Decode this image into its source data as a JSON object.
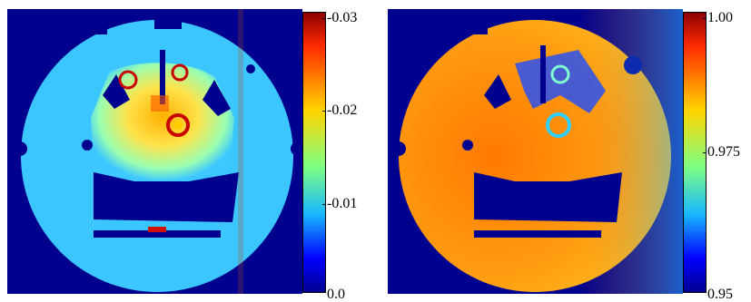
{
  "figure": {
    "left_map": {
      "colorbar": {
        "ticks": [
          "-0.03",
          "-0.02",
          "-0.01",
          "0.0"
        ],
        "colors": [
          "#8b0000",
          "#ff2a00",
          "#ffd400",
          "#7fff80",
          "#19b8ff",
          "#0000ff",
          "#00008f"
        ]
      }
    },
    "right_map": {
      "colorbar": {
        "ticks": [
          "1.00",
          "0.975",
          "0.95"
        ],
        "colors": [
          "#8b0000",
          "#ff2a00",
          "#ffd400",
          "#7fff80",
          "#19b8ff",
          "#0000ff",
          "#00008f"
        ]
      }
    }
  }
}
